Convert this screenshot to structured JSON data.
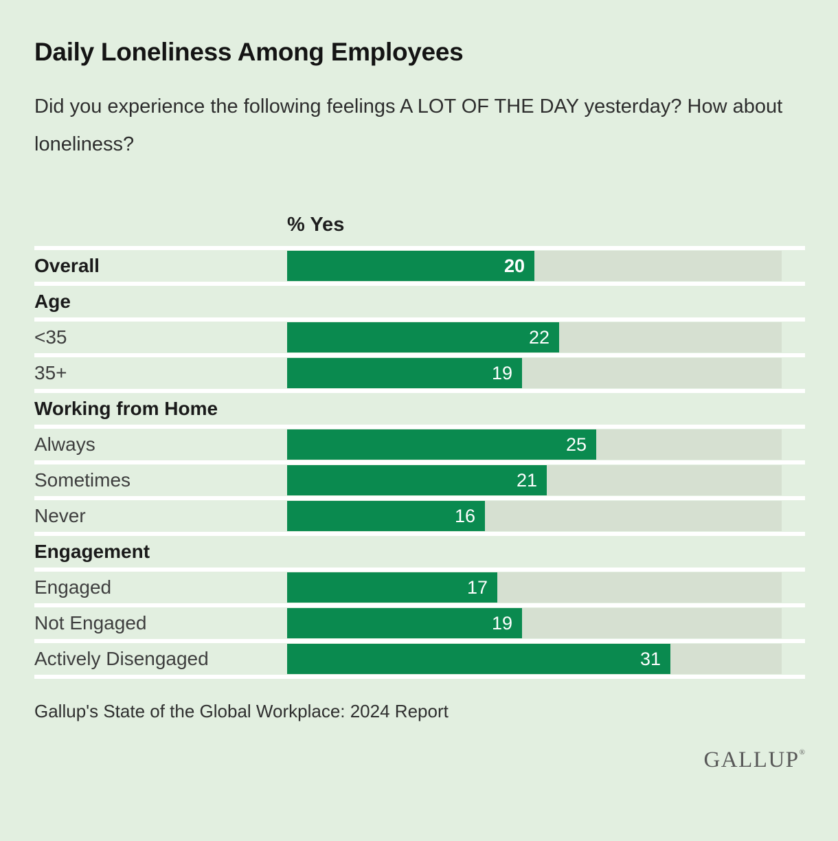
{
  "header": {
    "title": "Daily Loneliness Among Employees",
    "subtitle": "Did you experience the following feelings A LOT OF THE DAY yesterday? How about loneliness?"
  },
  "chart_data": {
    "type": "bar",
    "title": "Daily Loneliness Among Employees",
    "question": "Did you experience the following feelings A LOT OF THE DAY yesterday? How about loneliness?",
    "value_axis_label": "% Yes",
    "unit": "percent",
    "xlim": [
      0,
      40
    ],
    "orientation": "horizontal",
    "rows": [
      {
        "kind": "bar",
        "label": "Overall",
        "value": 20,
        "emphasis": true
      },
      {
        "kind": "section",
        "label": "Age"
      },
      {
        "kind": "bar",
        "label": "<35",
        "value": 22
      },
      {
        "kind": "bar",
        "label": "35+",
        "value": 19
      },
      {
        "kind": "section",
        "label": "Working from Home"
      },
      {
        "kind": "bar",
        "label": "Always",
        "value": 25
      },
      {
        "kind": "bar",
        "label": "Sometimes",
        "value": 21
      },
      {
        "kind": "bar",
        "label": "Never",
        "value": 16
      },
      {
        "kind": "section",
        "label": "Engagement"
      },
      {
        "kind": "bar",
        "label": "Engaged",
        "value": 17
      },
      {
        "kind": "bar",
        "label": "Not Engaged",
        "value": 19
      },
      {
        "kind": "bar",
        "label": "Actively Disengaged",
        "value": 31
      }
    ],
    "colors": {
      "bar": "#0a8a4f",
      "track": "#d6e0d1",
      "background": "#e2efe0",
      "separator": "#ffffff",
      "value_text": "#ffffff"
    },
    "legend": null,
    "grid": false
  },
  "footer": {
    "source": "Gallup's State of the Global Workplace: 2024 Report",
    "logo": "GALLUP",
    "logo_mark": "®"
  }
}
